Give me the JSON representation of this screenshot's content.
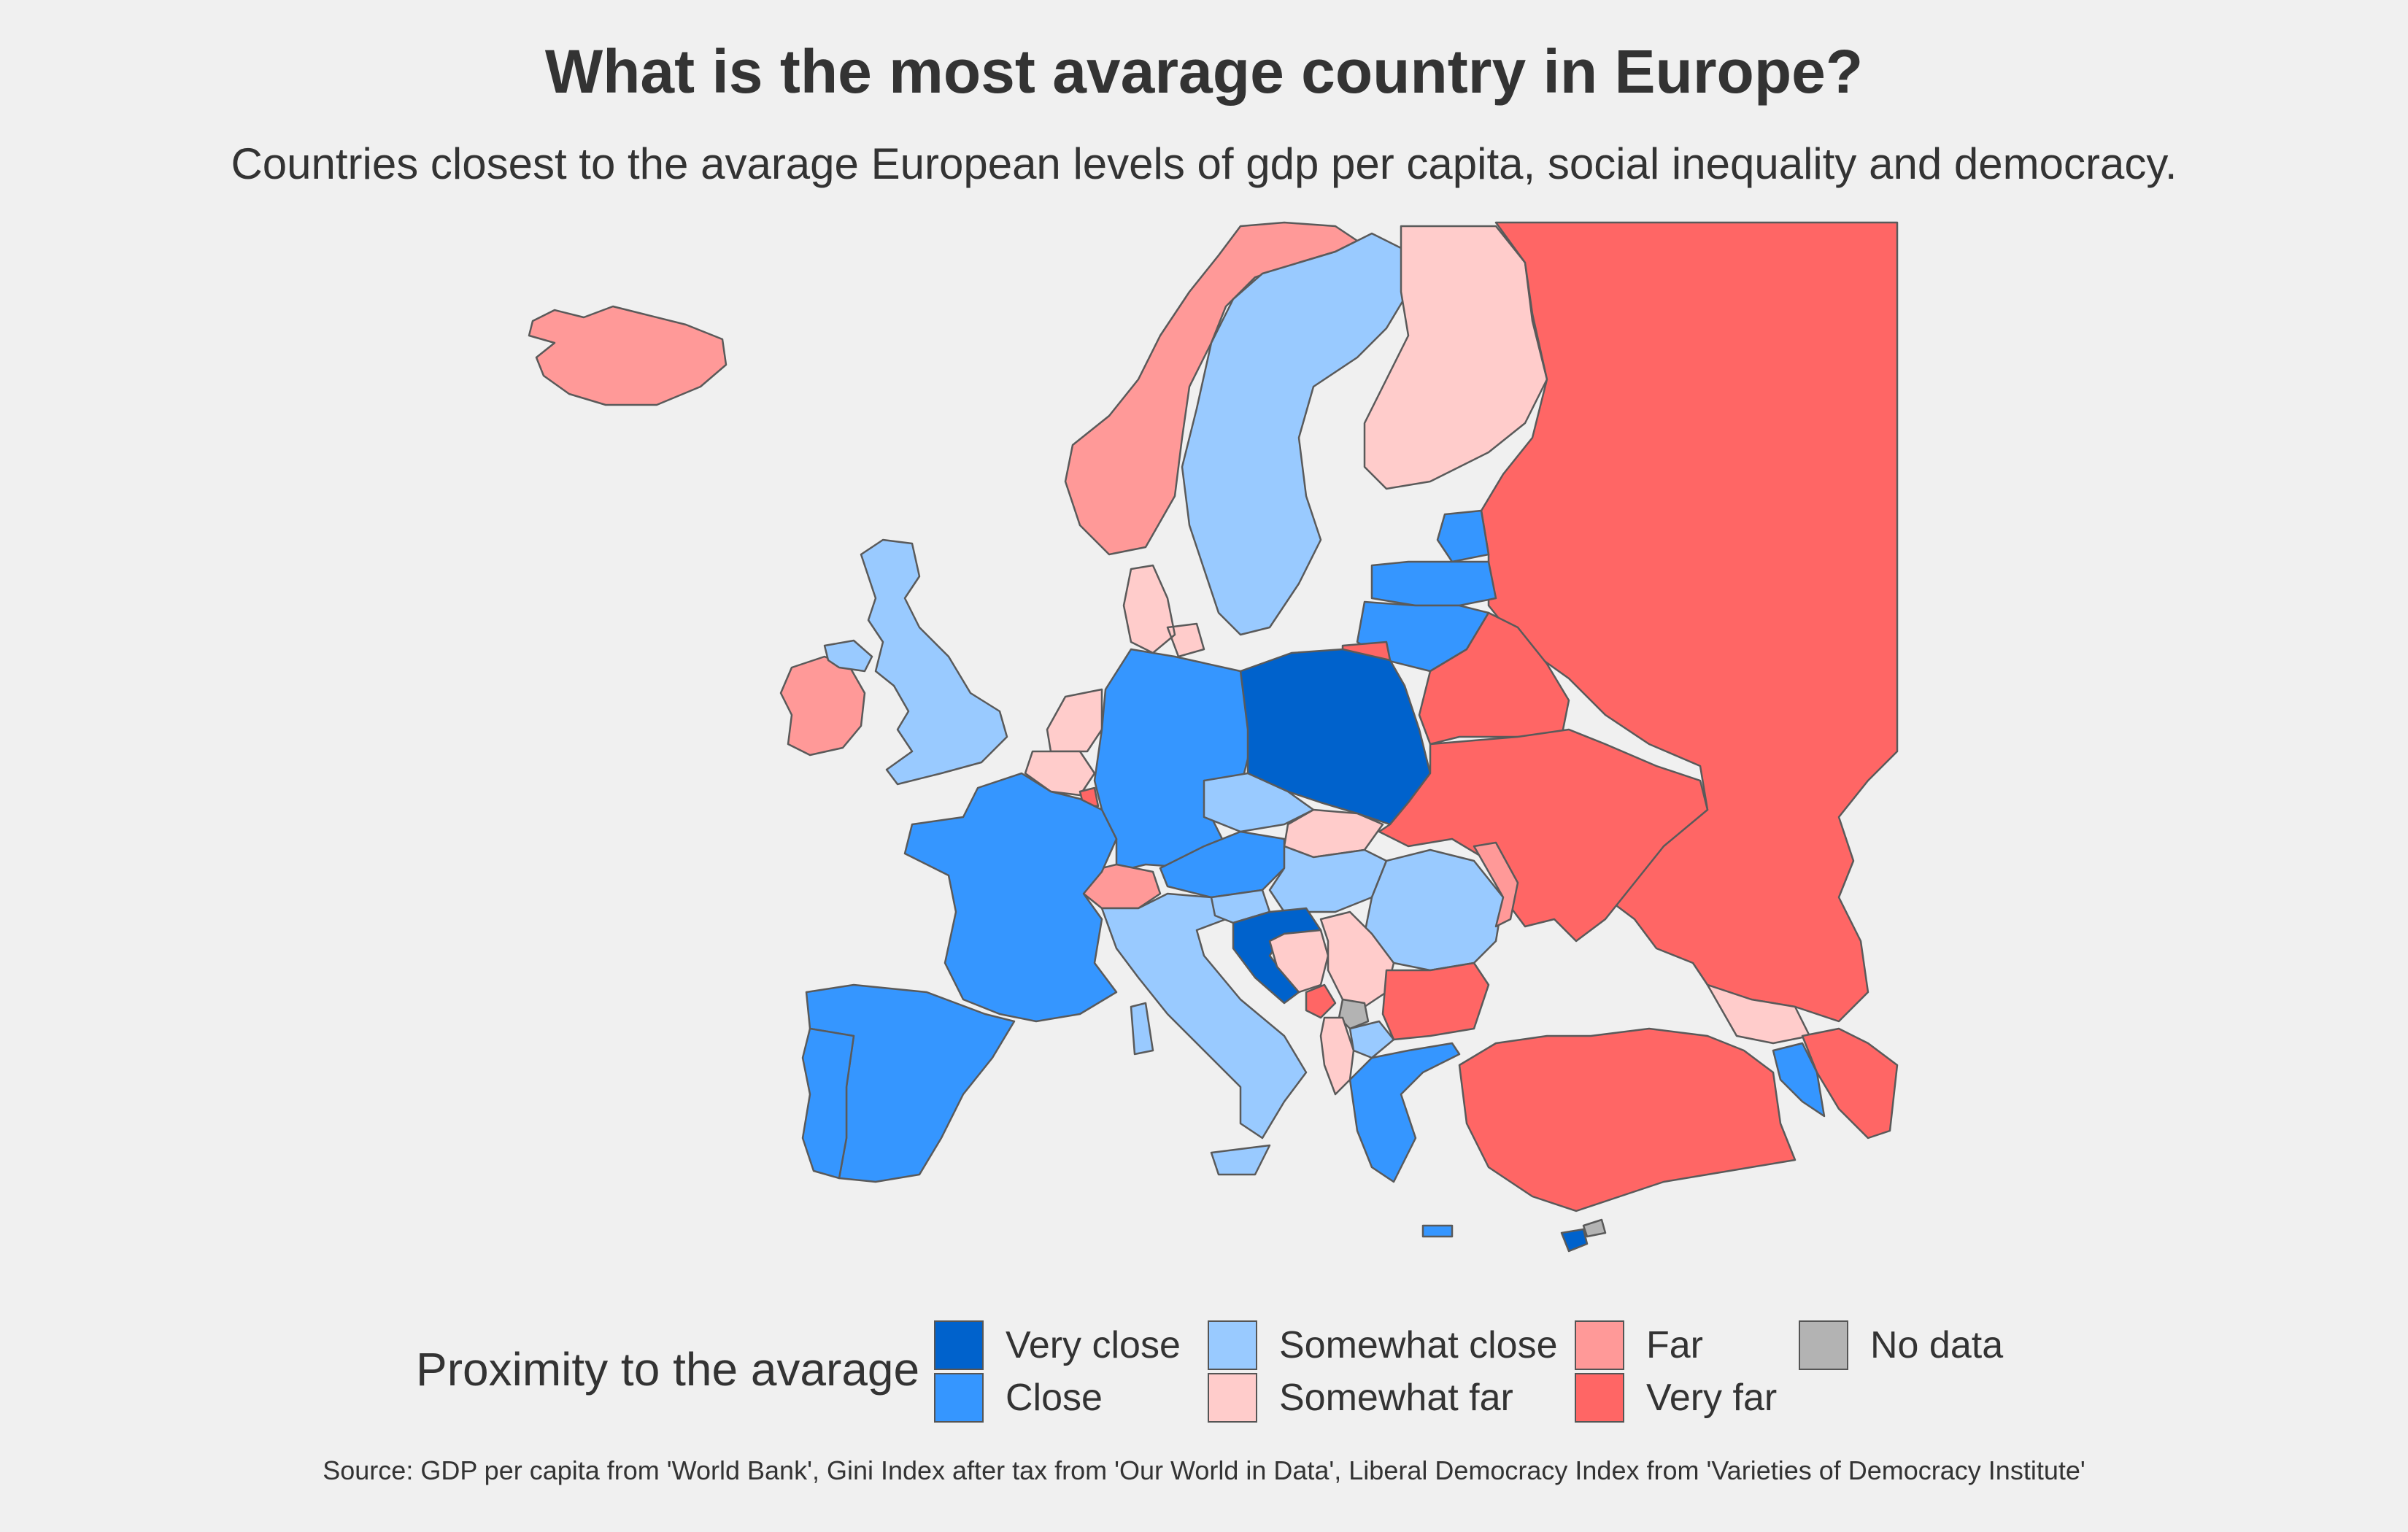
{
  "title": "What is the most avarage country in Europe?",
  "subtitle": "Countries closest to the avarage European levels of gdp per capita, social inequality and democracy.",
  "legend": {
    "title": "Proximity to the avarage",
    "items": [
      {
        "label": "Very close",
        "color": "#0062cc"
      },
      {
        "label": "Close",
        "color": "#3596ff"
      },
      {
        "label": "Somewhat close",
        "color": "#99caff"
      },
      {
        "label": "Somewhat far",
        "color": "#ffcccb"
      },
      {
        "label": "Far",
        "color": "#ff9998"
      },
      {
        "label": "Very far",
        "color": "#ff6665"
      },
      {
        "label": "No data",
        "color": "#b3b3b3"
      }
    ]
  },
  "source": "Source: GDP per capita from 'World Bank', Gini Index after tax from 'Our World in Data', Liberal Democracy Index from 'Varieties of Democracy Institute'",
  "map_data": {
    "Iceland": "Far",
    "Ireland": "Far",
    "Northern Ireland": "Somewhat close",
    "United Kingdom": "Somewhat close",
    "Norway": "Far",
    "Sweden": "Somewhat close",
    "Finland": "Somewhat far",
    "Russia": "Very far",
    "Estonia": "Close",
    "Latvia": "Close",
    "Lithuania": "Close",
    "Kaliningrad": "Very far",
    "Denmark": "Somewhat far",
    "Netherlands": "Somewhat far",
    "Belgium": "Somewhat far",
    "Luxembourg": "Very far",
    "Germany": "Close",
    "Poland": "Very close",
    "Belarus": "Very far",
    "Ukraine": "Very far",
    "Czechia": "Somewhat close",
    "Slovakia": "Somewhat far",
    "Austria": "Close",
    "Switzerland": "Far",
    "France": "Close",
    "Spain": "Close",
    "Portugal": "Close",
    "Italy": "Somewhat close",
    "Slovenia": "Somewhat close",
    "Hungary": "Somewhat close",
    "Romania": "Somewhat close",
    "Moldova": "Far",
    "Croatia": "Very close",
    "Bosnia and Herzegovina": "Somewhat far",
    "Serbia": "Somewhat far",
    "Montenegro": "Very far",
    "Kosovo": "No data",
    "North Macedonia": "Somewhat close",
    "Albania": "Somewhat far",
    "Bulgaria": "Very far",
    "Greece": "Close",
    "Turkey": "Very far",
    "Georgia": "Somewhat far",
    "Armenia": "Close",
    "Azerbaijan": "Very far",
    "Cyprus": "Very close",
    "Northern Cyprus": "No data"
  }
}
